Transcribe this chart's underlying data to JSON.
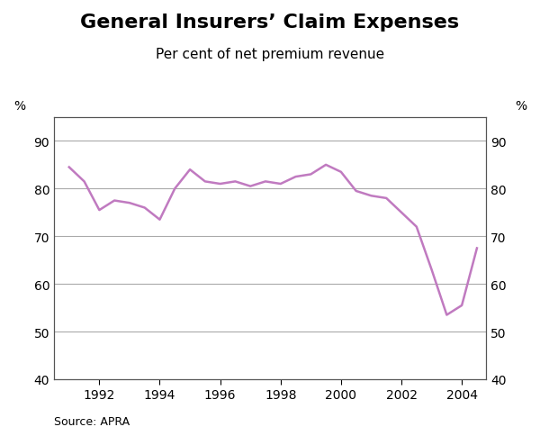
{
  "title": "General Insurers’ Claim Expenses",
  "subtitle": "Per cent of net premium revenue",
  "source": "Source: APRA",
  "ylabel_left": "%",
  "ylabel_right": "%",
  "xlim": [
    1990.5,
    2004.8
  ],
  "ylim": [
    40,
    95
  ],
  "yticks": [
    40,
    50,
    60,
    70,
    80,
    90
  ],
  "xticks": [
    1992,
    1994,
    1996,
    1998,
    2000,
    2002,
    2004
  ],
  "line_color": "#c07ac0",
  "line_width": 1.8,
  "x": [
    1991.0,
    1991.5,
    1992.0,
    1992.5,
    1993.0,
    1993.5,
    1994.0,
    1994.5,
    1995.0,
    1995.5,
    1996.0,
    1996.5,
    1997.0,
    1997.5,
    1998.0,
    1998.5,
    1999.0,
    1999.5,
    2000.0,
    2000.5,
    2001.0,
    2001.5,
    2002.0,
    2002.5,
    2003.0,
    2003.5,
    2004.0,
    2004.5
  ],
  "y": [
    84.5,
    81.5,
    75.5,
    77.5,
    77.0,
    76.0,
    73.5,
    80.0,
    84.0,
    81.5,
    81.0,
    81.5,
    80.5,
    81.5,
    81.0,
    82.5,
    83.0,
    85.0,
    83.5,
    79.5,
    78.5,
    78.0,
    75.0,
    72.0,
    63.0,
    53.5,
    55.5,
    67.5
  ],
  "grid_color": "#aaaaaa",
  "background_color": "#ffffff",
  "title_fontsize": 16,
  "subtitle_fontsize": 11,
  "tick_fontsize": 10,
  "source_fontsize": 9
}
